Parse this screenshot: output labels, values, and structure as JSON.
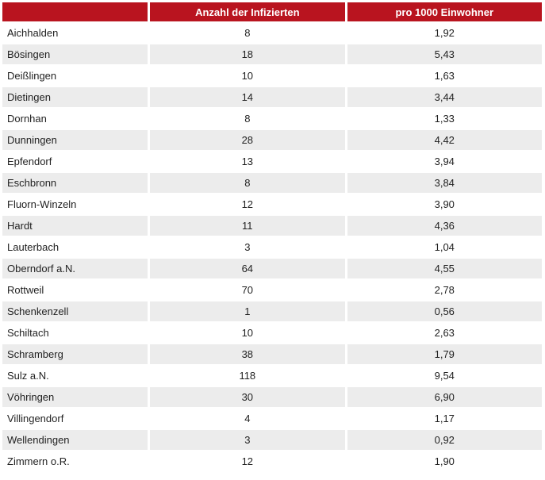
{
  "table": {
    "headers": [
      "",
      "Anzahl der Infizierten",
      "pro 1000 Einwohner"
    ],
    "rows": [
      {
        "name": "Aichhalden",
        "infected": "8",
        "per_1000": "1,92"
      },
      {
        "name": "Bösingen",
        "infected": "18",
        "per_1000": "5,43"
      },
      {
        "name": "Deißlingen",
        "infected": "10",
        "per_1000": "1,63"
      },
      {
        "name": "Dietingen",
        "infected": "14",
        "per_1000": "3,44"
      },
      {
        "name": "Dornhan",
        "infected": "8",
        "per_1000": "1,33"
      },
      {
        "name": "Dunningen",
        "infected": "28",
        "per_1000": "4,42"
      },
      {
        "name": "Epfendorf",
        "infected": "13",
        "per_1000": "3,94"
      },
      {
        "name": "Eschbronn",
        "infected": "8",
        "per_1000": "3,84"
      },
      {
        "name": "Fluorn-Winzeln",
        "infected": "12",
        "per_1000": "3,90"
      },
      {
        "name": "Hardt",
        "infected": "11",
        "per_1000": "4,36"
      },
      {
        "name": "Lauterbach",
        "infected": "3",
        "per_1000": "1,04"
      },
      {
        "name": "Oberndorf a.N.",
        "infected": "64",
        "per_1000": "4,55"
      },
      {
        "name": "Rottweil",
        "infected": "70",
        "per_1000": "2,78"
      },
      {
        "name": "Schenkenzell",
        "infected": "1",
        "per_1000": "0,56"
      },
      {
        "name": "Schiltach",
        "infected": "10",
        "per_1000": "2,63"
      },
      {
        "name": "Schramberg",
        "infected": "38",
        "per_1000": "1,79"
      },
      {
        "name": "Sulz a.N.",
        "infected": "118",
        "per_1000": "9,54"
      },
      {
        "name": "Vöhringen",
        "infected": "30",
        "per_1000": "6,90"
      },
      {
        "name": "Villingendorf",
        "infected": "4",
        "per_1000": "1,17"
      },
      {
        "name": "Wellendingen",
        "infected": "3",
        "per_1000": "0,92"
      },
      {
        "name": "Zimmern o.R.",
        "infected": "12",
        "per_1000": "1,90"
      }
    ]
  },
  "colors": {
    "header_bg": "#b9141f",
    "header_text": "#ffffff",
    "stripe_bg": "#ececec",
    "text": "#222222"
  },
  "chart_data": {
    "type": "table",
    "columns": [
      "",
      "Anzahl der Infizierten",
      "pro 1000 Einwohner"
    ],
    "rows": [
      [
        "Aichhalden",
        8,
        1.92
      ],
      [
        "Bösingen",
        18,
        5.43
      ],
      [
        "Deißlingen",
        10,
        1.63
      ],
      [
        "Dietingen",
        14,
        3.44
      ],
      [
        "Dornhan",
        8,
        1.33
      ],
      [
        "Dunningen",
        28,
        4.42
      ],
      [
        "Epfendorf",
        13,
        3.94
      ],
      [
        "Eschbronn",
        8,
        3.84
      ],
      [
        "Fluorn-Winzeln",
        12,
        3.9
      ],
      [
        "Hardt",
        11,
        4.36
      ],
      [
        "Lauterbach",
        3,
        1.04
      ],
      [
        "Oberndorf a.N.",
        64,
        4.55
      ],
      [
        "Rottweil",
        70,
        2.78
      ],
      [
        "Schenkenzell",
        1,
        0.56
      ],
      [
        "Schiltach",
        10,
        2.63
      ],
      [
        "Schramberg",
        38,
        1.79
      ],
      [
        "Sulz a.N.",
        118,
        9.54
      ],
      [
        "Vöhringen",
        30,
        6.9
      ],
      [
        "Villingendorf",
        4,
        1.17
      ],
      [
        "Wellendingen",
        3,
        0.92
      ],
      [
        "Zimmern o.R.",
        12,
        1.9
      ]
    ],
    "notes": "Decimal commas shown in UI; stripe styling on even rows; red header band"
  }
}
